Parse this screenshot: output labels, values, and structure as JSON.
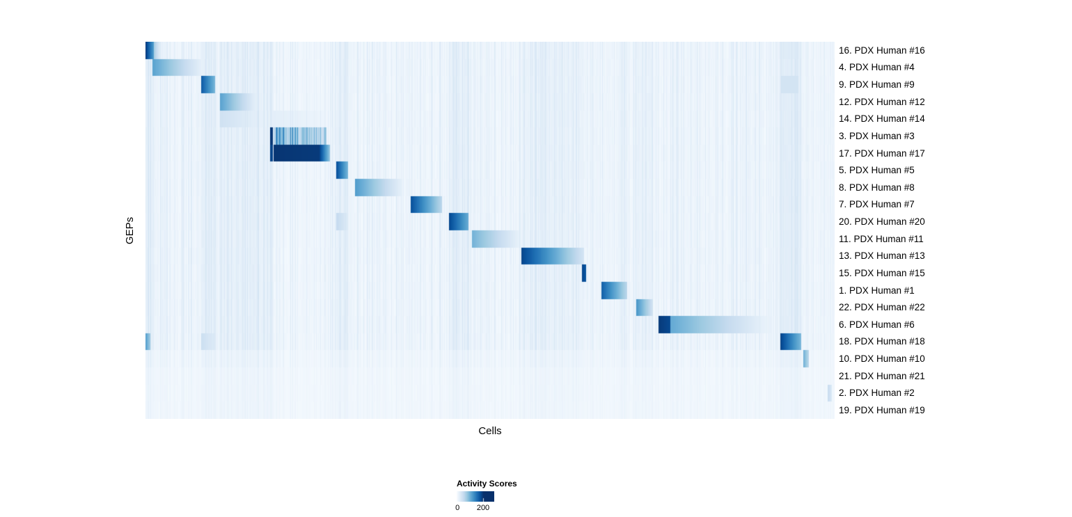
{
  "chart_data": {
    "type": "heatmap",
    "title": "",
    "xlabel": "Cells",
    "ylabel": "GEPs",
    "grid": false,
    "background_intensity": 0.02,
    "colormap": [
      "#f7fbff",
      "#deebf7",
      "#c6dbef",
      "#9ecae1",
      "#6baed6",
      "#4292c6",
      "#2171b5",
      "#08519c",
      "#08306b"
    ],
    "colorbar": {
      "title": "Activity Scores",
      "min_label": "0",
      "max_label": "200",
      "ticks": [
        0,
        200
      ],
      "clip": 0.72,
      "position": "bottom-center"
    },
    "column_bands": [
      {
        "from": 0.0,
        "to": 0.012,
        "intensity": 0.05
      },
      {
        "from": 0.08,
        "to": 0.102,
        "intensity": 0.05
      },
      {
        "from": 0.108,
        "to": 0.185,
        "intensity": 0.04
      },
      {
        "from": 0.277,
        "to": 0.295,
        "intensity": 0.04
      },
      {
        "from": 0.44,
        "to": 0.47,
        "intensity": 0.04
      },
      {
        "from": 0.546,
        "to": 0.637,
        "intensity": 0.03
      },
      {
        "from": 0.712,
        "to": 0.737,
        "intensity": 0.03
      },
      {
        "from": 0.922,
        "to": 0.952,
        "intensity": 0.06
      }
    ],
    "rows": [
      {
        "label": "16. PDX Human #16",
        "noise": 1,
        "segments": [
          {
            "from": 0.0,
            "to": 0.012,
            "i0": 0.95,
            "i1": 0.55
          },
          {
            "from": 0.012,
            "to": 0.022,
            "i0": 0.35,
            "i1": 0.08
          },
          {
            "from": 0.922,
            "to": 0.948,
            "i0": 0.12,
            "i1": 0.12
          }
        ]
      },
      {
        "label": "4. PDX Human #4",
        "noise": 1,
        "segments": [
          {
            "from": 0.01,
            "to": 0.085,
            "i0": 0.55,
            "i1": 0.06
          }
        ]
      },
      {
        "label": "9. PDX Human #9",
        "noise": 1,
        "segments": [
          {
            "from": 0.08,
            "to": 0.101,
            "i0": 0.85,
            "i1": 0.45
          },
          {
            "from": 0.922,
            "to": 0.948,
            "i0": 0.18,
            "i1": 0.18
          }
        ]
      },
      {
        "label": "12. PDX Human #12",
        "noise": 1,
        "segments": [
          {
            "from": 0.108,
            "to": 0.162,
            "i0": 0.55,
            "i1": 0.07
          }
        ]
      },
      {
        "label": "14. PDX Human #14",
        "noise": 1,
        "segments": [
          {
            "from": 0.108,
            "to": 0.185,
            "i0": 0.2,
            "i1": 0.05
          },
          {
            "from": 0.185,
            "to": 0.262,
            "i0": 0.1,
            "i1": 0.05
          }
        ]
      },
      {
        "label": "3. PDX Human #3",
        "noise": 1,
        "segments": [
          {
            "from": 0.18,
            "to": 0.1845,
            "i0": 0.97,
            "i1": 0.97
          },
          {
            "from": 0.186,
            "to": 0.262,
            "i0": 0.8,
            "i1": 0.5,
            "texture": "striped"
          }
        ]
      },
      {
        "label": "17. PDX Human #17",
        "noise": 1,
        "segments": [
          {
            "from": 0.18,
            "to": 0.1845,
            "i0": 0.92,
            "i1": 0.92
          },
          {
            "from": 0.186,
            "to": 0.252,
            "i0": 0.98,
            "i1": 0.96
          },
          {
            "from": 0.252,
            "to": 0.267,
            "i0": 0.95,
            "i1": 0.4
          }
        ]
      },
      {
        "label": "5. PDX Human #5",
        "noise": 1,
        "segments": [
          {
            "from": 0.277,
            "to": 0.294,
            "i0": 0.88,
            "i1": 0.45
          }
        ]
      },
      {
        "label": "8. PDX Human #8",
        "noise": 1,
        "segments": [
          {
            "from": 0.304,
            "to": 0.372,
            "i0": 0.58,
            "i1": 0.08
          }
        ]
      },
      {
        "label": "7. PDX Human #7",
        "noise": 1,
        "segments": [
          {
            "from": 0.385,
            "to": 0.43,
            "i0": 0.88,
            "i1": 0.28
          }
        ]
      },
      {
        "label": "20. PDX Human #20",
        "noise": 1,
        "segments": [
          {
            "from": 0.277,
            "to": 0.294,
            "i0": 0.25,
            "i1": 0.12
          },
          {
            "from": 0.44,
            "to": 0.469,
            "i0": 0.92,
            "i1": 0.5
          }
        ]
      },
      {
        "label": "11. PDX Human #11",
        "noise": 1,
        "segments": [
          {
            "from": 0.474,
            "to": 0.543,
            "i0": 0.48,
            "i1": 0.07
          }
        ]
      },
      {
        "label": "13. PDX Human #13",
        "noise": 1,
        "segments": [
          {
            "from": 0.546,
            "to": 0.636,
            "i0": 0.92,
            "i1": 0.18
          }
        ]
      },
      {
        "label": "15. PDX Human #15",
        "noise": 1,
        "segments": [
          {
            "from": 0.546,
            "to": 0.633,
            "i0": 0.07,
            "i1": 0.05
          },
          {
            "from": 0.633,
            "to": 0.64,
            "i0": 0.92,
            "i1": 0.85
          }
        ]
      },
      {
        "label": "1. PDX Human #1",
        "noise": 1,
        "segments": [
          {
            "from": 0.662,
            "to": 0.699,
            "i0": 0.82,
            "i1": 0.28
          }
        ]
      },
      {
        "label": "22. PDX Human #22",
        "noise": 1,
        "segments": [
          {
            "from": 0.712,
            "to": 0.737,
            "i0": 0.62,
            "i1": 0.18
          }
        ]
      },
      {
        "label": "6. PDX Human #6",
        "noise": 1,
        "segments": [
          {
            "from": 0.745,
            "to": 0.762,
            "i0": 0.96,
            "i1": 0.9
          },
          {
            "from": 0.762,
            "to": 0.91,
            "i0": 0.52,
            "i1": 0.04
          }
        ]
      },
      {
        "label": "18. PDX Human #18",
        "noise": 1,
        "segments": [
          {
            "from": 0.0,
            "to": 0.007,
            "i0": 0.55,
            "i1": 0.35
          },
          {
            "from": 0.08,
            "to": 0.101,
            "i0": 0.22,
            "i1": 0.12
          },
          {
            "from": 0.922,
            "to": 0.952,
            "i0": 0.93,
            "i1": 0.45
          }
        ]
      },
      {
        "label": "10. PDX Human #10",
        "noise": 0.6,
        "segments": [
          {
            "from": 0.955,
            "to": 0.963,
            "i0": 0.5,
            "i1": 0.28
          }
        ]
      },
      {
        "label": "21. PDX Human #21",
        "noise": 0.4,
        "segments": []
      },
      {
        "label": "2. PDX Human #2",
        "noise": 0.4,
        "segments": [
          {
            "from": 0.99,
            "to": 0.996,
            "i0": 0.25,
            "i1": 0.15
          }
        ]
      },
      {
        "label": "19. PDX Human #19",
        "noise": 0.4,
        "segments": []
      }
    ]
  }
}
